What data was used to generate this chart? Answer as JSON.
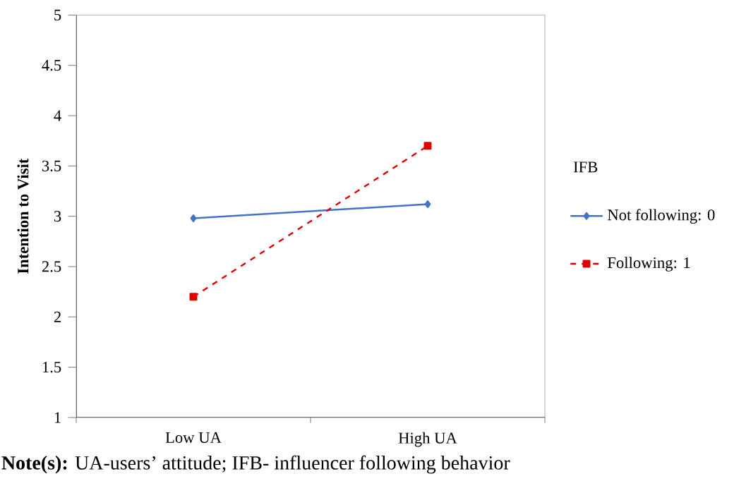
{
  "chart_data": {
    "type": "line",
    "ylabel": "Intention to Visit",
    "legend_title": "IFB",
    "categories": [
      "Low UA",
      "High UA"
    ],
    "series": [
      {
        "name": "Not following: 0",
        "color": "#4472c4",
        "values": [
          2.98,
          3.12
        ],
        "marker": "diamond",
        "line_style": "solid"
      },
      {
        "name": "Following: 1",
        "color": "#e00000",
        "values": [
          2.2,
          3.7
        ],
        "marker": "square",
        "line_style": "dashed"
      }
    ],
    "ylim": [
      1,
      5
    ],
    "yticks": [
      1,
      1.5,
      2,
      2.5,
      3,
      3.5,
      4,
      4.5,
      5
    ],
    "grid": false,
    "legend": "right",
    "annotations": [
      "**Note(s):** UA-users’ attitude; IFB- influencer following behavior"
    ]
  }
}
